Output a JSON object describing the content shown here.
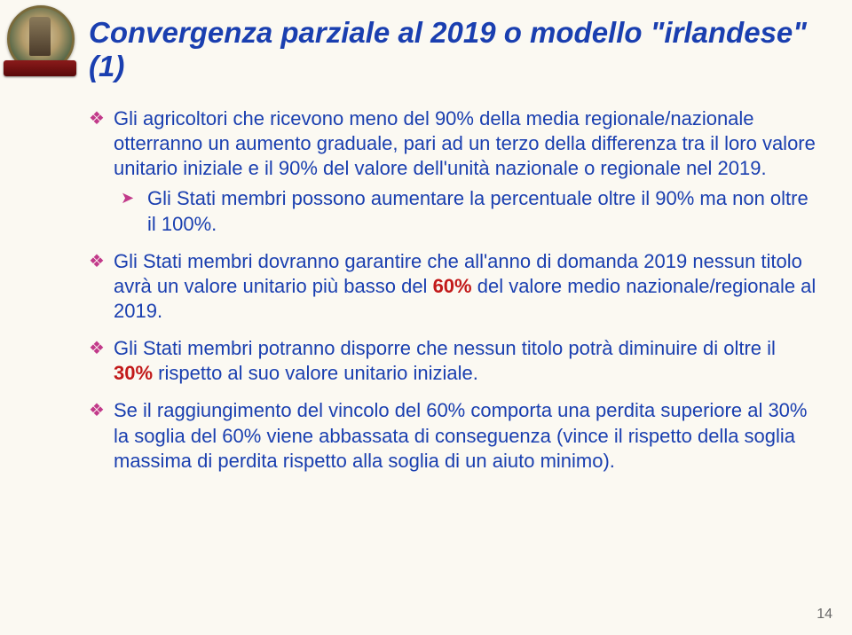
{
  "title": "Convergenza parziale al 2019 o modello \"irlandese\" (1)",
  "bullets": [
    {
      "text": "Gli agricoltori che ricevono meno del 90% della media regionale/nazionale otterranno un aumento graduale, pari ad un terzo della differenza tra il loro valore unitario iniziale e il 90% del valore dell'unità nazionale o regionale nel 2019.",
      "sub": {
        "text": "Gli Stati membri possono aumentare la percentuale oltre il 90% ma non oltre il 100%."
      }
    },
    {
      "pre": "Gli Stati membri dovranno garantire che all'anno di domanda 2019 nessun titolo avrà un valore unitario più basso del ",
      "pct": "60%",
      "post": " del valore medio nazionale/regionale al 2019."
    },
    {
      "pre": "Gli Stati membri potranno disporre che nessun titolo potrà diminuire di oltre il ",
      "pct": "30%",
      "post": " rispetto al suo valore unitario iniziale."
    },
    {
      "text": "Se il raggiungimento del vincolo del 60% comporta una perdita superiore al 30% la soglia del 60% viene abbassata di conseguenza (vince il rispetto della soglia massima di perdita rispetto alla soglia di un aiuto minimo)."
    }
  ],
  "pageNumber": "14",
  "colors": {
    "background": "#fbf9f2",
    "heading": "#1a3fb0",
    "bodyText": "#1a3fb0",
    "bulletMarker": "#c23a8a",
    "emphasis": "#c21a1a",
    "pageNum": "#6a6a6a"
  },
  "fonts": {
    "heading_pt": 33,
    "body_pt": 22,
    "heading_weight": "bold",
    "heading_style": "italic"
  }
}
